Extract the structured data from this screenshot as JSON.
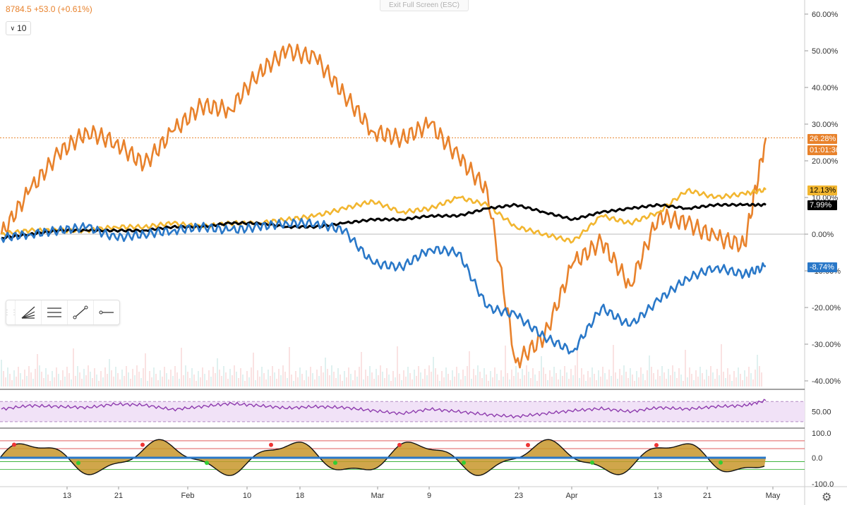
{
  "legend": {
    "text": "8784.5 +53.0 (+0.61%)"
  },
  "interval": {
    "value": "10",
    "icon": "chevron-down-icon"
  },
  "exit_fullscreen": {
    "label": "Exit Full Screen (ESC)"
  },
  "toolbar": {
    "icons": [
      "trend-fan-icon",
      "parallel-lines-icon",
      "trend-line-icon",
      "horizontal-ray-icon"
    ]
  },
  "price_tags": [
    {
      "label": "26.28%",
      "color": "#e8822c",
      "text_color": "#ffffff"
    },
    {
      "label": "01:01:36",
      "color": "#e8822c",
      "text_color": "#ffffff"
    },
    {
      "label": "12.13%",
      "color": "#f2b630",
      "text_color": "#000000"
    },
    {
      "label": "7.99%",
      "color": "#000000",
      "text_color": "#ffffff"
    },
    {
      "label": "-8.74%",
      "color": "#2a78c8",
      "text_color": "#ffffff"
    }
  ],
  "footer": {
    "settings_icon": "gear-icon"
  },
  "chart_data": [
    {
      "type": "line",
      "title": "",
      "yaxis_ticks": [
        "60.00%",
        "50.00%",
        "40.00%",
        "30.00%",
        "20.00%",
        "10.00%",
        "0.00%",
        "-10.00%",
        "-20.00%",
        "-30.00%",
        "-40.00%"
      ],
      "ylim": [
        -40,
        60
      ],
      "x_ticks": [
        "13",
        "21",
        "Feb",
        "10",
        "18",
        "Mar",
        "9",
        "23",
        "Apr",
        "13",
        "21",
        "May"
      ],
      "colors": {
        "orange": "#e8822c",
        "yellow": "#f2b630",
        "black": "#000000",
        "blue": "#2a78c8"
      },
      "x": [
        0,
        4,
        8,
        12,
        16,
        20,
        24,
        28,
        32,
        36,
        40,
        44,
        48,
        52,
        56,
        60,
        64,
        68,
        72,
        76,
        80,
        84,
        88,
        92,
        96,
        100,
        104,
        107
      ],
      "series": [
        {
          "values": [
            0,
            12,
            22,
            28,
            25,
            19,
            28,
            35,
            34,
            44,
            50,
            48,
            38,
            28,
            26,
            30,
            21,
            12,
            -35,
            -28,
            -8,
            -2,
            -14,
            5,
            3,
            -1,
            -3,
            26.28
          ]
        },
        {
          "values": [
            0,
            1,
            1,
            1,
            2,
            2,
            3,
            2,
            3,
            3,
            4,
            5,
            7,
            9,
            6,
            7,
            10,
            8,
            2,
            0,
            -2,
            5,
            3,
            6,
            12,
            10,
            11,
            12.13
          ]
        },
        {
          "values": [
            -1,
            0,
            1,
            1,
            1,
            1,
            2,
            2,
            3,
            3,
            2,
            2,
            3,
            4,
            4,
            5,
            5,
            7,
            8,
            6,
            4,
            6,
            7,
            8,
            7,
            8,
            8,
            7.99
          ]
        },
        {
          "values": [
            -1,
            0,
            1,
            2,
            -1,
            0,
            1,
            2,
            1,
            2,
            3,
            3,
            1,
            -8,
            -9,
            -4,
            -5,
            -20,
            -22,
            -28,
            -32,
            -20,
            -25,
            -18,
            -12,
            -9,
            -11,
            -8.74
          ]
        }
      ]
    },
    {
      "type": "line",
      "yaxis_ticks": [
        "50.00"
      ],
      "values": [
        55,
        62,
        60,
        58,
        65,
        63,
        54,
        60,
        66,
        62,
        57,
        60,
        58,
        52,
        46,
        55,
        50,
        44,
        40,
        46,
        52,
        56,
        50,
        58,
        55,
        60,
        62,
        72
      ],
      "color": "#8e3cae"
    },
    {
      "type": "area",
      "yaxis_ticks": [
        "100.0",
        "0.0",
        "-100.0"
      ],
      "ylim": [
        -100,
        100
      ]
    }
  ]
}
